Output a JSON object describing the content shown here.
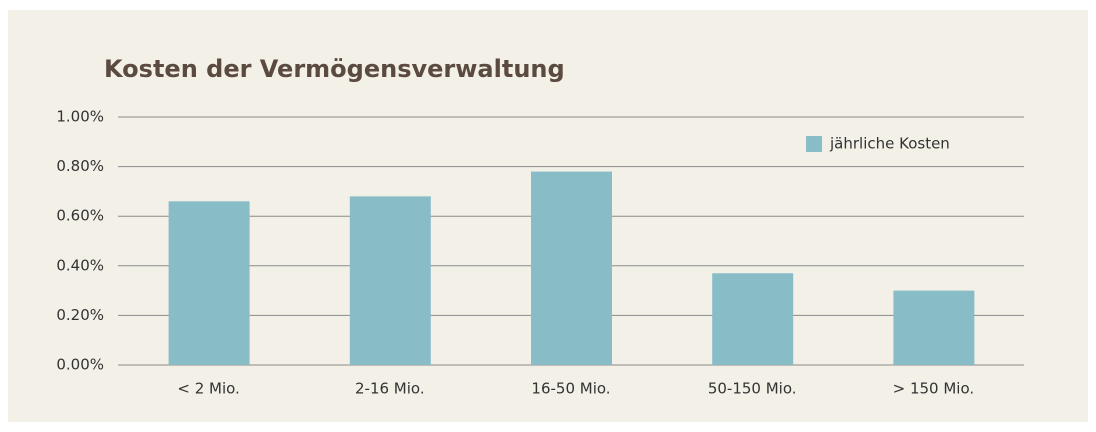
{
  "chart_data": {
    "type": "bar",
    "title": "Kosten der Vermögensverwaltung",
    "categories": [
      "< 2 Mio.",
      "2-16 Mio.",
      "16-50 Mio.",
      "50-150 Mio.",
      "> 150 Mio."
    ],
    "series": [
      {
        "name": "jährliche Kosten",
        "color": "#88bdc8",
        "values": [
          0.66,
          0.68,
          0.78,
          0.37,
          0.3
        ]
      }
    ],
    "ylim": [
      0,
      1
    ],
    "yticks": [
      {
        "value": 0,
        "label": "0.00%"
      },
      {
        "value": 0.2,
        "label": "0.20%"
      },
      {
        "value": 0.4,
        "label": "0.40%"
      },
      {
        "value": 0.6,
        "label": "0.60%"
      },
      {
        "value": 0.8,
        "label": "0.80%"
      },
      {
        "value": 1,
        "label": "1.00%"
      }
    ],
    "grid": true,
    "legend": "upper right"
  }
}
